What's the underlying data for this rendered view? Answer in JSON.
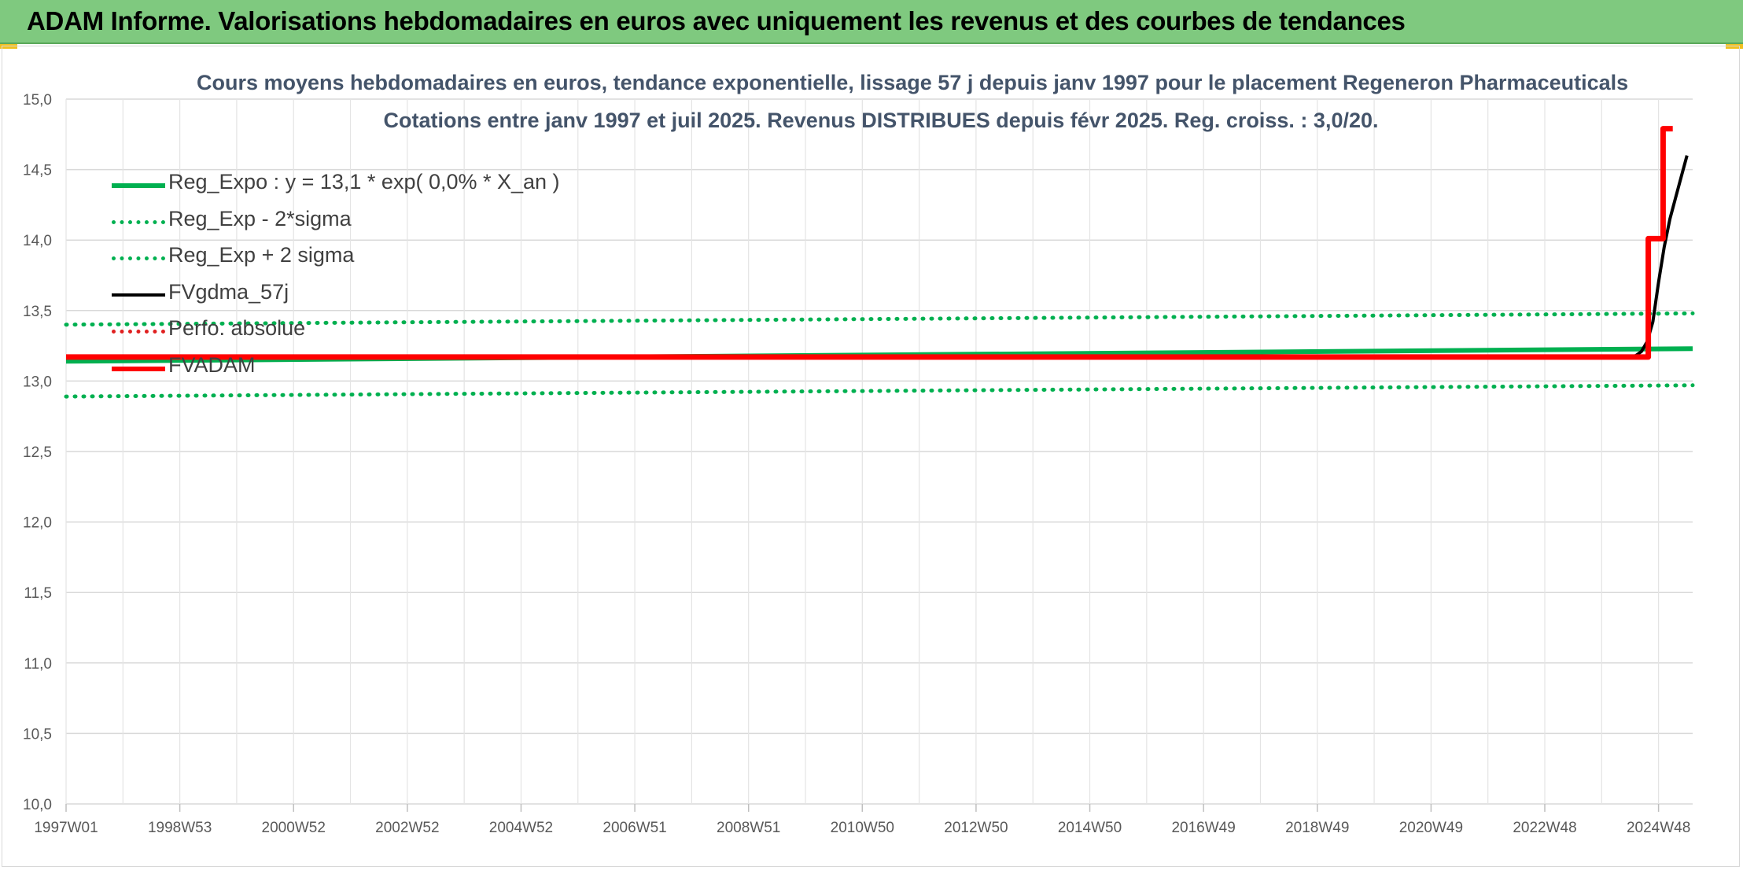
{
  "banner": {
    "title": "ADAM Informe. Valorisations hebdomadaires en euros avec uniquement les revenus et des courbes de tendances"
  },
  "chart_data": {
    "type": "line",
    "title": "Cours moyens hebdomadaires en euros, tendance exponentielle, lissage 57 j depuis janv 1997 pour le placement Regeneron Pharmaceuticals",
    "subtitle": "Cotations entre janv 1997 et juil 2025. Revenus DISTRIBUES depuis févr 2025. Reg. croiss. : 3,0/20.",
    "xlabel": "",
    "ylabel": "",
    "ylim": [
      10.0,
      15.0
    ],
    "xlim": [
      1997.0,
      2025.6
    ],
    "y_ticks": [
      "10,0",
      "10,5",
      "11,0",
      "11,5",
      "12,0",
      "12,5",
      "13,0",
      "13,5",
      "14,0",
      "14,5",
      "15,0"
    ],
    "x_ticks": [
      {
        "label": "1997W01",
        "x": 1997.0
      },
      {
        "label": "1998W53",
        "x": 1999.0
      },
      {
        "label": "2000W52",
        "x": 2001.0
      },
      {
        "label": "2002W52",
        "x": 2003.0
      },
      {
        "label": "2004W52",
        "x": 2005.0
      },
      {
        "label": "2006W51",
        "x": 2007.0
      },
      {
        "label": "2008W51",
        "x": 2009.0
      },
      {
        "label": "2010W50",
        "x": 2011.0
      },
      {
        "label": "2012W50",
        "x": 2013.0
      },
      {
        "label": "2014W50",
        "x": 2015.0
      },
      {
        "label": "2016W49",
        "x": 2017.0
      },
      {
        "label": "2018W49",
        "x": 2019.0
      },
      {
        "label": "2020W49",
        "x": 2021.0
      },
      {
        "label": "2022W48",
        "x": 2023.0
      },
      {
        "label": "2024W48",
        "x": 2025.0
      }
    ],
    "grid": true,
    "legend_position": "top-left",
    "series": [
      {
        "name": "Reg_Expo : y = 13,1 * exp( 0,0% *  X_an )",
        "color": "#00b050",
        "style": "solid",
        "width": 6,
        "points": [
          [
            1997.0,
            13.14
          ],
          [
            2025.6,
            13.23
          ]
        ]
      },
      {
        "name": "Reg_Exp - 2*sigma",
        "color": "#00b050",
        "style": "dotted",
        "width": 5,
        "points": [
          [
            1997.0,
            12.89
          ],
          [
            2025.6,
            12.97
          ]
        ]
      },
      {
        "name": "Reg_Exp + 2 sigma",
        "color": "#00b050",
        "style": "dotted",
        "width": 5,
        "points": [
          [
            1997.0,
            13.4
          ],
          [
            2025.6,
            13.48
          ]
        ]
      },
      {
        "name": "FVgdma_57j",
        "color": "#000000",
        "style": "solid",
        "width": 4,
        "points": [
          [
            1997.0,
            13.17
          ],
          [
            2024.5,
            13.17
          ],
          [
            2024.6,
            13.18
          ],
          [
            2024.7,
            13.21
          ],
          [
            2024.8,
            13.28
          ],
          [
            2024.9,
            13.42
          ],
          [
            2025.0,
            13.7
          ],
          [
            2025.1,
            13.95
          ],
          [
            2025.2,
            14.15
          ],
          [
            2025.3,
            14.3
          ],
          [
            2025.4,
            14.45
          ],
          [
            2025.5,
            14.6
          ]
        ]
      },
      {
        "name": "Perfo. absolue",
        "color": "#e02020",
        "style": "dotted",
        "width": 4,
        "points": []
      },
      {
        "name": "FVADAM",
        "color": "#ff0000",
        "style": "solid",
        "width": 7,
        "points": [
          [
            1997.0,
            13.17
          ],
          [
            2024.82,
            13.17
          ],
          [
            2024.82,
            14.01
          ],
          [
            2025.08,
            14.01
          ],
          [
            2025.08,
            14.79
          ],
          [
            2025.25,
            14.79
          ]
        ]
      }
    ]
  }
}
